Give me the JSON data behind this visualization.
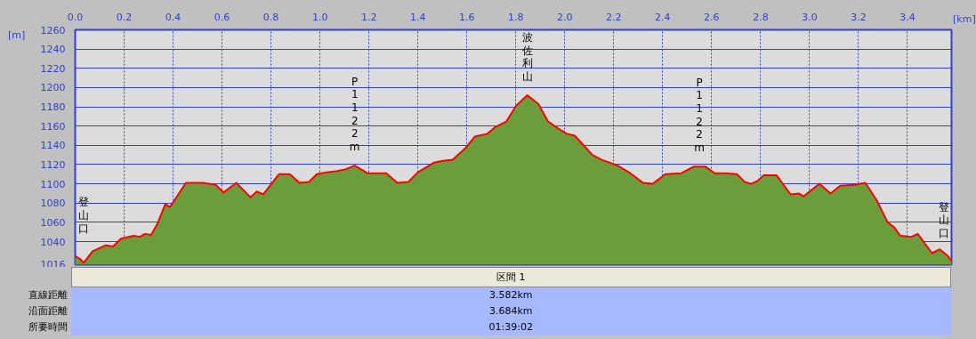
{
  "chart_data": {
    "type": "area",
    "xlabel": "[km]",
    "ylabel": "[m]",
    "x": [
      0,
      0.02,
      0.035,
      0.071,
      0.123,
      0.155,
      0.187,
      0.239,
      0.265,
      0.284,
      0.31,
      0.335,
      0.368,
      0.387,
      0.406,
      0.452,
      0.523,
      0.574,
      0.606,
      0.658,
      0.716,
      0.742,
      0.768,
      0.832,
      0.877,
      0.916,
      0.955,
      0.987,
      1.026,
      1.065,
      1.103,
      1.142,
      1.194,
      1.271,
      1.316,
      1.361,
      1.4,
      1.465,
      1.503,
      1.542,
      1.594,
      1.632,
      1.684,
      1.716,
      1.762,
      1.801,
      1.847,
      1.892,
      1.931,
      1.97,
      2.009,
      2.041,
      2.113,
      2.151,
      2.216,
      2.268,
      2.32,
      2.359,
      2.411,
      2.476,
      2.528,
      2.574,
      2.613,
      2.658,
      2.703,
      2.735,
      2.761,
      2.787,
      2.813,
      2.865,
      2.923,
      2.956,
      2.975,
      3.04,
      3.086,
      3.125,
      3.183,
      3.228,
      3.274,
      3.319,
      3.345,
      3.371,
      3.416,
      3.442,
      3.5,
      3.532,
      3.565,
      3.58
    ],
    "series": [
      {
        "color": "#6b9e3a",
        "values": [
          1025,
          1022,
          1018,
          1030,
          1036,
          1035,
          1043,
          1046,
          1045,
          1048,
          1047,
          1058,
          1079,
          1076,
          1083,
          1101,
          1101,
          1099,
          1091,
          1101,
          1086,
          1092,
          1089,
          1110,
          1110,
          1101,
          1102,
          1110,
          1112,
          1113,
          1115,
          1119,
          1111,
          1111,
          1101,
          1102,
          1112,
          1122,
          1124,
          1125,
          1137,
          1149,
          1152,
          1159,
          1165,
          1181,
          1192,
          1183,
          1165,
          1158,
          1152,
          1150,
          1130,
          1125,
          1119,
          1111,
          1101,
          1100,
          1110,
          1111,
          1118,
          1118,
          1111,
          1111,
          1110,
          1102,
          1100,
          1103,
          1109,
          1109,
          1089,
          1090,
          1087,
          1100,
          1090,
          1098,
          1099,
          1101,
          1083,
          1060,
          1055,
          1046,
          1045,
          1048,
          1028,
          1032,
          1025,
          1020
        ]
      },
      {
        "type": "line",
        "color": "#ff0000",
        "values": [
          1025,
          1022,
          1018,
          1030,
          1036,
          1035,
          1043,
          1046,
          1045,
          1048,
          1047,
          1058,
          1079,
          1076,
          1083,
          1101,
          1101,
          1099,
          1091,
          1101,
          1086,
          1092,
          1089,
          1110,
          1110,
          1101,
          1102,
          1110,
          1112,
          1113,
          1115,
          1119,
          1111,
          1111,
          1101,
          1102,
          1112,
          1122,
          1124,
          1125,
          1137,
          1149,
          1152,
          1159,
          1165,
          1181,
          1192,
          1183,
          1165,
          1158,
          1152,
          1150,
          1130,
          1125,
          1119,
          1111,
          1101,
          1100,
          1110,
          1111,
          1118,
          1118,
          1111,
          1111,
          1110,
          1102,
          1100,
          1103,
          1109,
          1109,
          1089,
          1090,
          1087,
          1100,
          1090,
          1098,
          1099,
          1101,
          1083,
          1060,
          1055,
          1046,
          1045,
          1048,
          1028,
          1032,
          1025,
          1020
        ]
      }
    ],
    "xlim": [
      0,
      3.58
    ],
    "ylim": [
      1016,
      1260
    ],
    "xticks": [
      {
        "value": 0,
        "label": "0.0"
      },
      {
        "value": 0.2,
        "label": "0.2"
      },
      {
        "value": 0.4,
        "label": "0.4"
      },
      {
        "value": 0.6,
        "label": "0.6"
      },
      {
        "value": 0.8,
        "label": "0.8"
      },
      {
        "value": 1,
        "label": "1.0"
      },
      {
        "value": 1.2,
        "label": "1.2"
      },
      {
        "value": 1.4,
        "label": "1.4"
      },
      {
        "value": 1.6,
        "label": "1.6"
      },
      {
        "value": 1.8,
        "label": "1.8"
      },
      {
        "value": 2,
        "label": "2.0"
      },
      {
        "value": 2.2,
        "label": "2.2"
      },
      {
        "value": 2.4,
        "label": "2.4"
      },
      {
        "value": 2.6,
        "label": "2.6"
      },
      {
        "value": 2.8,
        "label": "2.8"
      },
      {
        "value": 3,
        "label": "3.0"
      },
      {
        "value": 3.2,
        "label": "3.2"
      },
      {
        "value": 3.4,
        "label": "3.4"
      }
    ],
    "yticks": [
      1016,
      1040,
      1060,
      1080,
      1100,
      1120,
      1140,
      1160,
      1180,
      1200,
      1220,
      1240,
      1260
    ],
    "grid": true,
    "annotations": [
      {
        "text": "登山口",
        "x": 0,
        "y": 1025
      },
      {
        "text": "P1122m",
        "x": 1.142,
        "y": 1119
      },
      {
        "text": "波佐利山",
        "x": 1.847,
        "y": 1192
      },
      {
        "text": "P1122m",
        "x": 2.55,
        "y": 1118
      },
      {
        "text": "登山口",
        "x": 3.58,
        "y": 1020
      },
      "区間 1",
      "直線距離",
      "3.582km",
      "沿面距離",
      "3.684km",
      "所要時間",
      "01:39:02"
    ]
  }
}
